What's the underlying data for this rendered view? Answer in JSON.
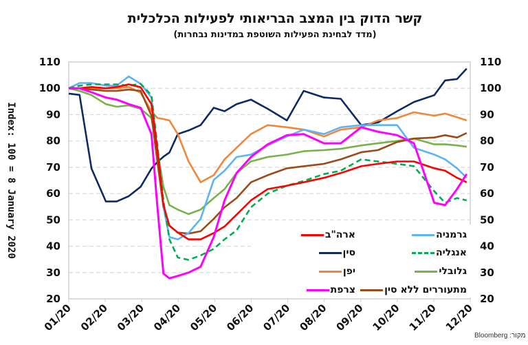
{
  "chart_data": {
    "type": "line",
    "title": "קשר הדוק בין המצב הבריאותי לפעילות הכלכלית",
    "subtitle": "(מדד לבחינת הפעילות השוטפת במדינות נבחרות)",
    "ylabel": "Index: 100 = 8 January 2020",
    "xlabel": "",
    "ylim": [
      20,
      110
    ],
    "yticks": [
      20,
      30,
      40,
      50,
      60,
      70,
      80,
      90,
      100,
      110
    ],
    "xlim": [
      "2020-01-01",
      "2020-12-01"
    ],
    "xticks": [
      "01/20",
      "02/20",
      "03/20",
      "04/20",
      "05/20",
      "06/20",
      "07/20",
      "08/20",
      "09/20",
      "10/20",
      "11/20",
      "12/20"
    ],
    "grid": "horizontal dashed",
    "legend_position": "bottom-right inside",
    "source": "Bloomberg :מקור",
    "x": [
      "2020-01-01",
      "2020-01-10",
      "2020-01-20",
      "2020-02-01",
      "2020-02-10",
      "2020-02-20",
      "2020-03-01",
      "2020-03-10",
      "2020-03-15",
      "2020-03-20",
      "2020-03-25",
      "2020-04-01",
      "2020-04-10",
      "2020-04-20",
      "2020-05-01",
      "2020-05-10",
      "2020-05-20",
      "2020-06-01",
      "2020-06-15",
      "2020-07-01",
      "2020-07-15",
      "2020-08-01",
      "2020-08-15",
      "2020-09-01",
      "2020-09-15",
      "2020-10-01",
      "2020-10-15",
      "2020-11-01",
      "2020-11-10",
      "2020-11-20",
      "2020-11-28"
    ],
    "series": [
      {
        "name": "ארה\"ב",
        "color": "#ff0000",
        "dash": false,
        "values": [
          100,
          100,
          100.5,
          100,
          100.5,
          101.5,
          100.4,
          94,
          76.5,
          55.6,
          47.8,
          45.2,
          42.6,
          42.6,
          45,
          47.5,
          52,
          57.4,
          61.7,
          63,
          64.3,
          66,
          67.8,
          70.4,
          71.3,
          72.2,
          72.2,
          69.6,
          68.7,
          66,
          64.3
        ]
      },
      {
        "name": "גרמניה",
        "color": "#5ab4f5",
        "dash": false,
        "values": [
          100,
          102,
          102,
          101,
          101,
          104.5,
          101.7,
          96.5,
          76.5,
          55,
          43.5,
          42.6,
          45,
          50.4,
          65.2,
          68.7,
          73.9,
          74.8,
          78.3,
          81.7,
          84.3,
          82.6,
          85.2,
          86,
          86,
          86,
          77.4,
          74.8,
          73,
          69.6,
          66
        ]
      },
      {
        "name": "סין",
        "color": "#0d2a63",
        "dash": false,
        "values": [
          98,
          97.5,
          69.5,
          57,
          57,
          59,
          62.6,
          69.5,
          72,
          74,
          75.6,
          82.6,
          84,
          86,
          92.6,
          91.3,
          94,
          95.7,
          92.2,
          87.8,
          99,
          96.5,
          96,
          86,
          87,
          91.3,
          94.8,
          97.4,
          103,
          103.5,
          107.5
        ]
      },
      {
        "name": "אנגליה",
        "color": "#00b050",
        "dash": true,
        "values": [
          100,
          101,
          101.5,
          101.5,
          101.5,
          101,
          101.7,
          97.4,
          78.3,
          57.4,
          42.6,
          35.7,
          34.8,
          36.5,
          39,
          42.6,
          46,
          54.8,
          60,
          63,
          64.8,
          67.4,
          68.7,
          73,
          72.2,
          71.3,
          70.4,
          60.9,
          56.5,
          58.3,
          57.4
        ]
      },
      {
        "name": "יפן",
        "color": "#f0873a",
        "dash": false,
        "values": [
          100,
          100,
          100,
          100,
          100,
          100.5,
          98.3,
          91.3,
          88.7,
          88.3,
          87.8,
          82.6,
          72.2,
          64.3,
          67,
          73,
          77.4,
          82.6,
          86,
          85.2,
          84.3,
          81.7,
          84.3,
          85.2,
          87.8,
          88.7,
          90.9,
          89.6,
          90.4,
          89,
          87.8
        ]
      },
      {
        "name": "גלובלי",
        "color": "#77b34a",
        "dash": false,
        "values": [
          100,
          99,
          97.4,
          94,
          93,
          93.5,
          92.2,
          88.7,
          76.5,
          62.6,
          55.6,
          53.9,
          52.2,
          53.9,
          58.3,
          61.7,
          67.8,
          72.2,
          73.9,
          74.8,
          76.1,
          76.5,
          77,
          78.3,
          79.1,
          80,
          80.9,
          78.7,
          78.7,
          78.3,
          77.8
        ]
      },
      {
        "name": "צרפת",
        "color": "#ff00ff",
        "dash": false,
        "values": [
          100,
          100,
          98.5,
          96.5,
          95.7,
          94,
          92.6,
          82.6,
          54.8,
          29.6,
          27.8,
          28.7,
          30,
          32.2,
          43.5,
          57.4,
          67.8,
          73.9,
          78.7,
          82.2,
          82.6,
          79.1,
          79.1,
          85.2,
          83.5,
          82.2,
          79.1,
          56.5,
          55.6,
          61.7,
          67.4
        ]
      },
      {
        "name": "מתעוררים ללא סין",
        "color": "#9c4a16",
        "dash": false,
        "values": [
          100,
          100,
          99.5,
          99,
          99,
          99.5,
          99,
          89.6,
          72,
          54.8,
          47.8,
          45.2,
          44.8,
          45.7,
          50.4,
          54.8,
          58.3,
          64.3,
          67,
          69.6,
          70.4,
          71.3,
          73,
          75.7,
          76.5,
          79.6,
          80.9,
          81.3,
          82.2,
          81.3,
          83
        ]
      }
    ]
  },
  "legend_order": [
    {
      "left": 0,
      "right": 1
    },
    {
      "left": 2,
      "right": 3
    },
    {
      "left": 4,
      "right": 5
    },
    {
      "left": 6,
      "right": 7
    }
  ]
}
